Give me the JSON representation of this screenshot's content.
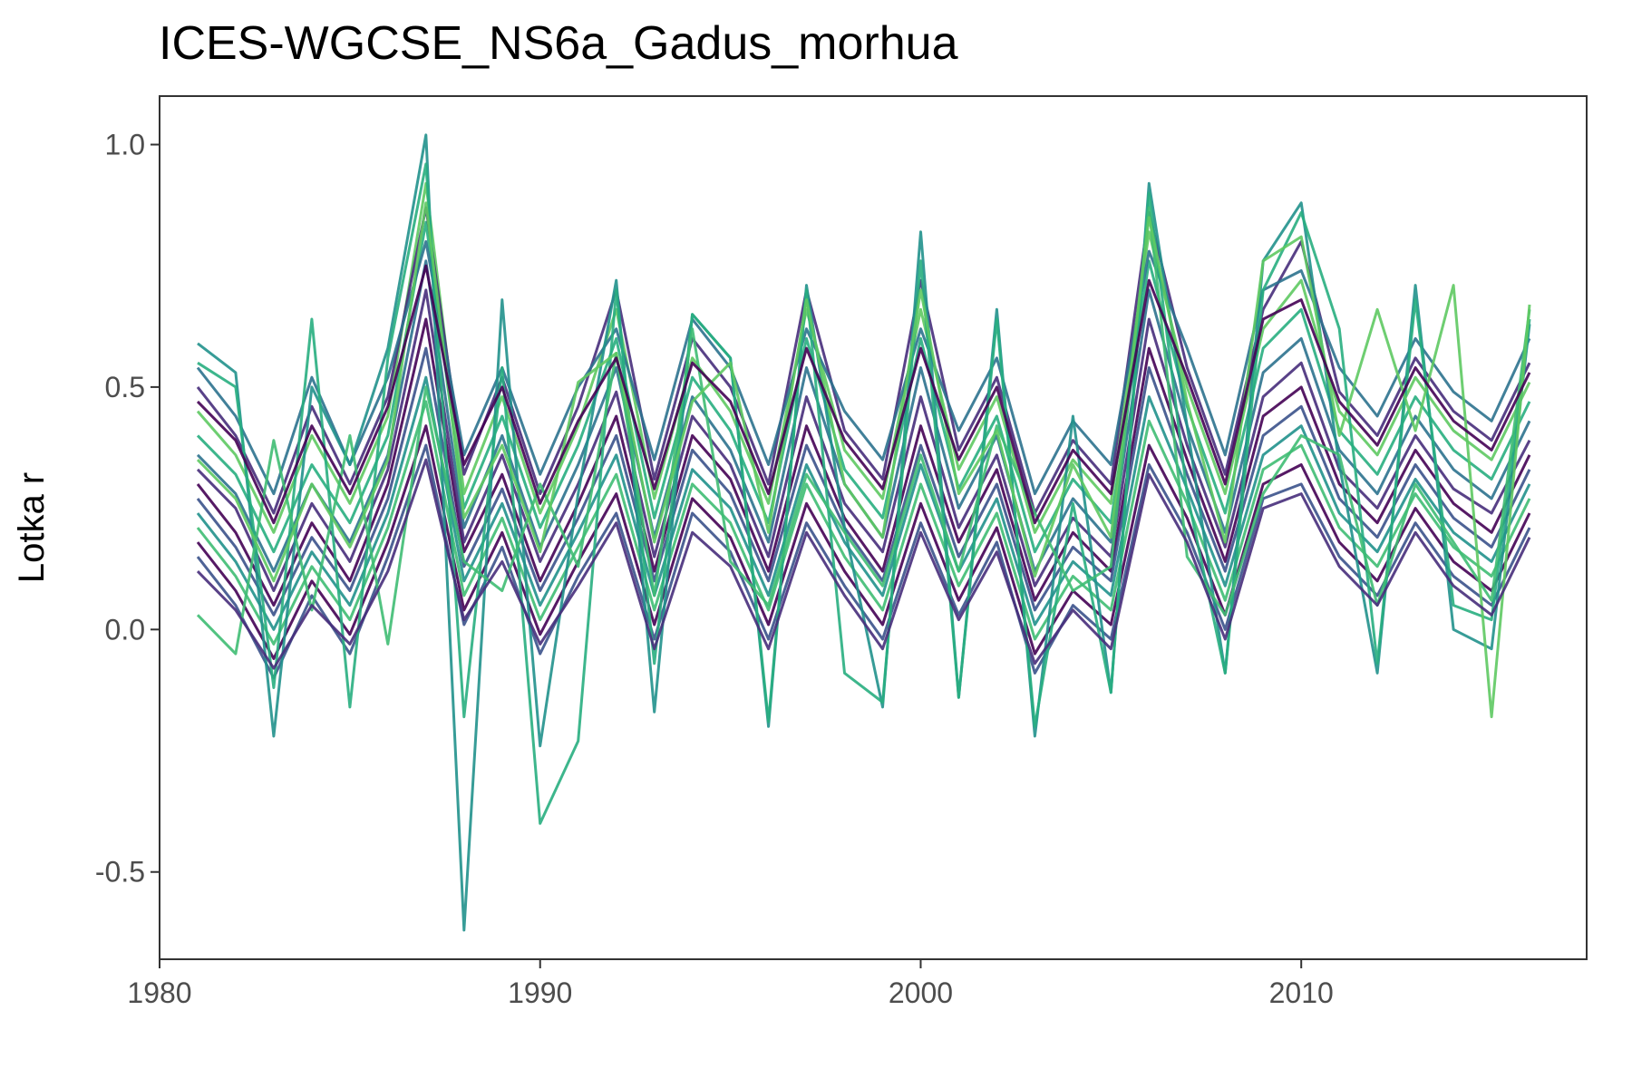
{
  "chart_data": {
    "type": "line",
    "title": "ICES-WGCSE_NS6a_Gadus_morhua",
    "xlabel": "",
    "ylabel": "Lotka r",
    "xlim": [
      1980,
      2017.5
    ],
    "ylim": [
      -0.68,
      1.1
    ],
    "x_ticks": [
      1980,
      1990,
      2000,
      2010
    ],
    "x_tick_labels": [
      "1980",
      "1990",
      "2000",
      "2010"
    ],
    "y_ticks": [
      -0.5,
      0.0,
      0.5,
      1.0
    ],
    "y_tick_labels": [
      "-0.5",
      "0.0",
      "0.5",
      "1.0"
    ],
    "grid": false,
    "legend": "none",
    "x": [
      1981,
      1982,
      1983,
      1984,
      1985,
      1986,
      1987,
      1988,
      1989,
      1990,
      1991,
      1992,
      1993,
      1994,
      1995,
      1996,
      1997,
      1998,
      1999,
      2000,
      2001,
      2002,
      2003,
      2004,
      2005,
      2006,
      2007,
      2008,
      2009,
      2010,
      2011,
      2012,
      2013,
      2014,
      2015,
      2016
    ],
    "palette": [
      "#440154",
      "#472d7b",
      "#3b528b",
      "#2c728e",
      "#21918c",
      "#28ae80",
      "#3fbc73",
      "#5ec962"
    ],
    "series": [
      {
        "values": [
          0.3,
          0.2,
          0.05,
          0.22,
          0.1,
          0.3,
          0.64,
          0.16,
          0.32,
          0.1,
          0.26,
          0.44,
          0.12,
          0.4,
          0.31,
          0.12,
          0.42,
          0.23,
          0.12,
          0.42,
          0.18,
          0.33,
          0.06,
          0.2,
          0.12,
          0.58,
          0.35,
          0.14,
          0.44,
          0.5,
          0.3,
          0.22,
          0.37,
          0.26,
          0.2,
          0.36
        ]
      },
      {
        "values": [
          0.33,
          0.25,
          0.08,
          0.26,
          0.14,
          0.33,
          0.7,
          0.18,
          0.36,
          0.14,
          0.3,
          0.49,
          0.15,
          0.44,
          0.34,
          0.15,
          0.48,
          0.26,
          0.16,
          0.48,
          0.21,
          0.36,
          0.09,
          0.23,
          0.15,
          0.64,
          0.38,
          0.17,
          0.48,
          0.55,
          0.33,
          0.25,
          0.4,
          0.29,
          0.24,
          0.39
        ]
      },
      {
        "values": [
          0.27,
          0.17,
          0.03,
          0.19,
          0.08,
          0.27,
          0.58,
          0.13,
          0.29,
          0.08,
          0.23,
          0.4,
          0.1,
          0.37,
          0.28,
          0.1,
          0.38,
          0.21,
          0.1,
          0.38,
          0.15,
          0.3,
          0.04,
          0.17,
          0.1,
          0.54,
          0.32,
          0.12,
          0.4,
          0.46,
          0.27,
          0.19,
          0.34,
          0.23,
          0.17,
          0.33
        ]
      },
      {
        "values": [
          0.36,
          0.28,
          0.12,
          0.3,
          0.18,
          0.36,
          0.76,
          0.21,
          0.4,
          0.17,
          0.34,
          0.54,
          0.19,
          0.48,
          0.37,
          0.18,
          0.54,
          0.3,
          0.19,
          0.54,
          0.25,
          0.4,
          0.12,
          0.27,
          0.18,
          0.7,
          0.42,
          0.2,
          0.53,
          0.6,
          0.37,
          0.28,
          0.44,
          0.33,
          0.27,
          0.43
        ]
      },
      {
        "values": [
          0.24,
          0.14,
          0.0,
          0.16,
          0.05,
          0.24,
          0.52,
          0.1,
          0.26,
          0.05,
          0.2,
          0.36,
          0.07,
          0.33,
          0.25,
          0.07,
          0.34,
          0.18,
          0.07,
          0.34,
          0.12,
          0.27,
          0.01,
          0.14,
          0.07,
          0.48,
          0.29,
          0.09,
          0.36,
          0.42,
          0.24,
          0.16,
          0.31,
          0.2,
          0.14,
          0.3
        ]
      },
      {
        "values": [
          0.4,
          0.32,
          0.16,
          0.34,
          0.22,
          0.4,
          0.84,
          0.25,
          0.44,
          0.21,
          0.38,
          0.6,
          0.23,
          0.52,
          0.41,
          0.22,
          0.6,
          0.33,
          0.23,
          0.6,
          0.29,
          0.44,
          0.16,
          0.31,
          0.22,
          0.76,
          0.46,
          0.24,
          0.58,
          0.66,
          0.41,
          0.32,
          0.48,
          0.37,
          0.31,
          0.47
        ]
      },
      {
        "values": [
          0.21,
          0.11,
          -0.03,
          0.13,
          0.02,
          0.21,
          0.47,
          0.07,
          0.23,
          0.02,
          0.17,
          0.32,
          0.04,
          0.3,
          0.22,
          0.04,
          0.3,
          0.15,
          0.04,
          0.3,
          0.09,
          0.24,
          -0.02,
          0.11,
          0.04,
          0.43,
          0.26,
          0.06,
          0.33,
          0.38,
          0.21,
          0.13,
          0.28,
          0.17,
          0.11,
          0.27
        ]
      },
      {
        "values": [
          0.45,
          0.36,
          0.2,
          0.4,
          0.26,
          0.44,
          0.92,
          0.28,
          0.48,
          0.24,
          0.42,
          0.66,
          0.27,
          0.56,
          0.45,
          0.26,
          0.66,
          0.37,
          0.27,
          0.66,
          0.33,
          0.48,
          0.2,
          0.35,
          0.26,
          0.82,
          0.5,
          0.28,
          0.62,
          0.72,
          0.45,
          0.36,
          0.52,
          0.41,
          0.35,
          0.51
        ]
      },
      {
        "values": [
          0.18,
          0.08,
          -0.06,
          0.1,
          -0.01,
          0.18,
          0.42,
          0.04,
          0.2,
          -0.01,
          0.14,
          0.28,
          0.01,
          0.27,
          0.19,
          0.01,
          0.26,
          0.12,
          0.01,
          0.26,
          0.06,
          0.21,
          -0.05,
          0.08,
          0.01,
          0.38,
          0.23,
          0.03,
          0.3,
          0.34,
          0.18,
          0.1,
          0.25,
          0.14,
          0.08,
          0.24
        ]
      },
      {
        "values": [
          0.5,
          0.4,
          0.24,
          0.46,
          0.3,
          0.48,
          0.87,
          0.32,
          0.52,
          0.28,
          0.46,
          0.7,
          0.31,
          0.6,
          0.5,
          0.3,
          0.7,
          0.41,
          0.31,
          0.72,
          0.37,
          0.52,
          0.24,
          0.39,
          0.3,
          0.86,
          0.54,
          0.32,
          0.66,
          0.8,
          0.49,
          0.4,
          0.56,
          0.45,
          0.39,
          0.55
        ]
      },
      {
        "values": [
          0.15,
          0.05,
          -0.1,
          0.07,
          -0.05,
          0.15,
          0.38,
          0.01,
          0.17,
          -0.05,
          0.11,
          0.24,
          -0.02,
          0.24,
          0.16,
          -0.02,
          0.22,
          0.09,
          -0.02,
          0.22,
          0.03,
          0.18,
          -0.09,
          0.05,
          -0.02,
          0.34,
          0.2,
          0.0,
          0.27,
          0.3,
          0.15,
          0.07,
          0.22,
          0.11,
          0.05,
          0.21
        ]
      },
      {
        "values": [
          0.54,
          0.44,
          0.28,
          0.52,
          0.34,
          0.52,
          0.8,
          0.36,
          0.54,
          0.32,
          0.5,
          0.62,
          0.35,
          0.64,
          0.54,
          0.34,
          0.62,
          0.45,
          0.35,
          0.62,
          0.41,
          0.56,
          0.28,
          0.43,
          0.34,
          0.78,
          0.58,
          0.36,
          0.7,
          0.74,
          0.54,
          0.44,
          0.6,
          0.49,
          0.43,
          0.6
        ]
      },
      {
        "values": [
          0.59,
          0.53,
          -0.22,
          0.5,
          0.34,
          0.58,
          1.02,
          -0.62,
          0.68,
          -0.24,
          0.28,
          0.72,
          -0.17,
          0.65,
          0.56,
          -0.2,
          0.71,
          0.21,
          -0.16,
          0.82,
          -0.14,
          0.66,
          -0.22,
          0.44,
          -0.13,
          0.92,
          0.42,
          -0.09,
          0.76,
          0.88,
          0.34,
          -0.09,
          0.71,
          0.0,
          -0.04,
          0.63
        ]
      },
      {
        "values": [
          0.55,
          0.5,
          -0.12,
          0.64,
          -0.16,
          0.56,
          0.96,
          -0.18,
          0.54,
          -0.4,
          -0.23,
          0.7,
          -0.07,
          0.65,
          0.56,
          -0.19,
          0.7,
          -0.09,
          -0.15,
          0.76,
          -0.14,
          0.64,
          -0.2,
          0.26,
          -0.13,
          0.9,
          0.28,
          -0.09,
          0.7,
          0.86,
          0.62,
          -0.07,
          0.68,
          0.05,
          0.02,
          0.64
        ]
      },
      {
        "values": [
          0.03,
          -0.05,
          0.39,
          0.04,
          0.4,
          -0.03,
          0.5,
          0.14,
          0.08,
          0.3,
          0.13,
          0.57,
          0.07,
          0.62,
          0.14,
          0.05,
          0.32,
          0.2,
          0.09,
          0.36,
          0.12,
          0.42,
          0.24,
          0.08,
          0.13,
          0.87,
          0.15,
          0.03,
          0.28,
          0.4,
          0.36,
          0.05,
          0.3,
          0.18,
          0.06,
          0.66
        ]
      },
      {
        "values": [
          0.35,
          0.27,
          0.1,
          0.3,
          0.17,
          0.35,
          0.88,
          0.23,
          0.38,
          0.16,
          0.51,
          0.57,
          0.18,
          0.47,
          0.55,
          0.2,
          0.68,
          0.3,
          0.19,
          0.7,
          0.28,
          0.41,
          0.11,
          0.34,
          0.19,
          0.85,
          0.47,
          0.18,
          0.76,
          0.81,
          0.4,
          0.66,
          0.41,
          0.71,
          -0.18,
          0.67
        ]
      },
      {
        "values": [
          0.47,
          0.39,
          0.22,
          0.42,
          0.28,
          0.46,
          0.75,
          0.34,
          0.5,
          0.26,
          0.43,
          0.56,
          0.29,
          0.55,
          0.47,
          0.28,
          0.58,
          0.39,
          0.29,
          0.58,
          0.35,
          0.5,
          0.22,
          0.37,
          0.28,
          0.72,
          0.52,
          0.3,
          0.64,
          0.68,
          0.47,
          0.38,
          0.54,
          0.43,
          0.37,
          0.53
        ]
      },
      {
        "values": [
          0.12,
          0.04,
          -0.08,
          0.05,
          -0.03,
          0.12,
          0.35,
          0.02,
          0.14,
          -0.03,
          0.09,
          0.22,
          -0.04,
          0.2,
          0.13,
          -0.04,
          0.2,
          0.07,
          -0.04,
          0.2,
          0.02,
          0.16,
          -0.07,
          0.04,
          -0.04,
          0.32,
          0.18,
          -0.02,
          0.25,
          0.28,
          0.13,
          0.05,
          0.2,
          0.09,
          0.03,
          0.19
        ]
      }
    ]
  }
}
